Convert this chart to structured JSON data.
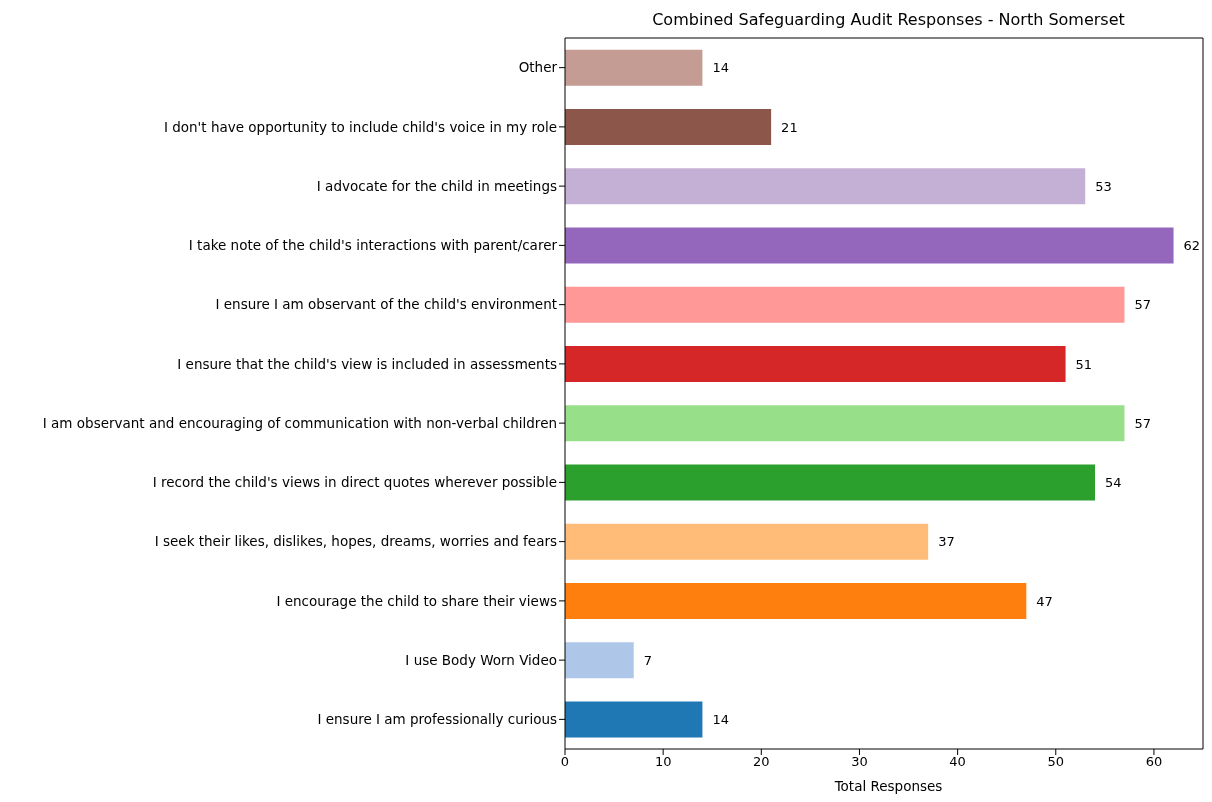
{
  "chart_data": {
    "type": "bar",
    "orientation": "horizontal",
    "title": "Combined Safeguarding Audit Responses - North Somerset",
    "xlabel": "Total Responses",
    "categories": [
      "Other",
      "I don't have opportunity to include child's voice in my role",
      "I advocate for the child in meetings",
      "I take note of the child's interactions with parent/carer",
      "I ensure I am observant of the child's environment",
      "I ensure that the child's view is included in assessments",
      "I am observant and encouraging of communication with non-verbal children",
      "I record the child's views in direct quotes wherever possible",
      "I seek their likes, dislikes, hopes, dreams, worries and fears",
      "I encourage the child to share their views",
      "I use Body Worn Video",
      "I ensure I am professionally curious"
    ],
    "values": [
      14,
      21,
      53,
      62,
      57,
      51,
      57,
      54,
      37,
      47,
      7,
      14
    ],
    "colors": [
      "#c49c94",
      "#8c564b",
      "#c5b0d5",
      "#9467bd",
      "#ff9896",
      "#d62728",
      "#98df8a",
      "#2ca02c",
      "#ffbb78",
      "#ff7f0e",
      "#aec7e8",
      "#1f77b4"
    ],
    "xlim": [
      0,
      65
    ],
    "xticks": [
      0,
      10,
      20,
      30,
      40,
      50,
      60
    ],
    "data_labels": true
  }
}
